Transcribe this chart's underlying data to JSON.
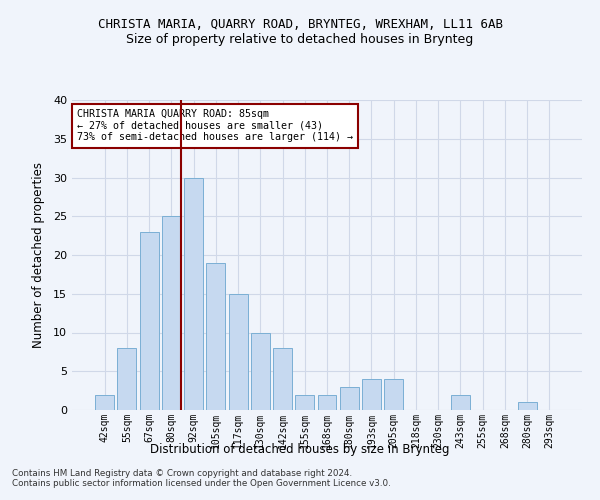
{
  "title": "CHRISTA MARIA, QUARRY ROAD, BRYNTEG, WREXHAM, LL11 6AB",
  "subtitle": "Size of property relative to detached houses in Brynteg",
  "xlabel": "Distribution of detached houses by size in Brynteg",
  "ylabel": "Number of detached properties",
  "bar_labels": [
    "42sqm",
    "55sqm",
    "67sqm",
    "80sqm",
    "92sqm",
    "105sqm",
    "117sqm",
    "130sqm",
    "142sqm",
    "155sqm",
    "168sqm",
    "180sqm",
    "193sqm",
    "205sqm",
    "218sqm",
    "230sqm",
    "243sqm",
    "255sqm",
    "268sqm",
    "280sqm",
    "293sqm"
  ],
  "bar_values": [
    2,
    8,
    23,
    25,
    30,
    19,
    15,
    10,
    8,
    2,
    2,
    3,
    4,
    4,
    0,
    0,
    2,
    0,
    0,
    1,
    0
  ],
  "bar_color": "#c6d9f0",
  "bar_edge_color": "#7bafd4",
  "vline_color": "#8b0000",
  "annotation_text": "CHRISTA MARIA QUARRY ROAD: 85sqm\n← 27% of detached houses are smaller (43)\n73% of semi-detached houses are larger (114) →",
  "annotation_box_color": "white",
  "annotation_box_edge": "#8b0000",
  "ylim": [
    0,
    40
  ],
  "yticks": [
    0,
    5,
    10,
    15,
    20,
    25,
    30,
    35,
    40
  ],
  "grid_color": "#d0d8e8",
  "bg_color": "#f0f4fb",
  "footer1": "Contains HM Land Registry data © Crown copyright and database right 2024.",
  "footer2": "Contains public sector information licensed under the Open Government Licence v3.0."
}
